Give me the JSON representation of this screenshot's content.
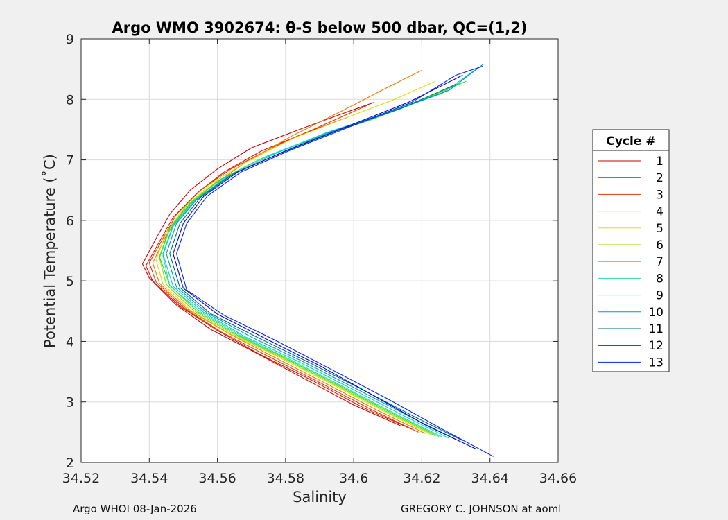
{
  "chart_data": {
    "type": "line",
    "title": "Argo WMO 3902674: θ-S below 500 dbar,  QC=(1,2)",
    "xlabel": "Salinity",
    "ylabel": "Potential Temperature (˚C)",
    "xlim": [
      34.52,
      34.66
    ],
    "ylim": [
      2,
      9
    ],
    "xticks": [
      "34.52",
      "34.54",
      "34.56",
      "34.58",
      "34.6",
      "34.62",
      "34.64",
      "34.66"
    ],
    "yticks": [
      "2",
      "3",
      "4",
      "5",
      "6",
      "7",
      "8",
      "9"
    ],
    "grid": true,
    "legend": {
      "title": "Cycle #",
      "placement": "right"
    },
    "series": [
      {
        "name": "1",
        "color": "#cc0000",
        "x": [
          34.614,
          34.6,
          34.585,
          34.57,
          34.558,
          34.548,
          34.54,
          34.538,
          34.542,
          34.546,
          34.552,
          34.56,
          34.57,
          34.584,
          34.596,
          34.606
        ],
        "y": [
          2.6,
          2.95,
          3.4,
          3.85,
          4.2,
          4.6,
          5.05,
          5.28,
          5.7,
          6.1,
          6.5,
          6.85,
          7.2,
          7.5,
          7.75,
          7.95
        ]
      },
      {
        "name": "2",
        "color": "#dd1100",
        "x": [
          34.617,
          34.603,
          34.588,
          34.572,
          34.56,
          34.549,
          34.541,
          34.539,
          34.543,
          34.547,
          34.554,
          34.562,
          34.573,
          34.586,
          34.598
        ],
        "y": [
          2.55,
          2.9,
          3.35,
          3.8,
          4.18,
          4.58,
          5.0,
          5.25,
          5.65,
          6.05,
          6.45,
          6.8,
          7.15,
          7.45,
          7.7
        ]
      },
      {
        "name": "3",
        "color": "#e63300",
        "x": [
          34.619,
          34.605,
          34.59,
          34.574,
          34.561,
          34.55,
          34.542,
          34.54,
          34.544,
          34.548,
          34.555,
          34.564,
          34.576,
          34.59,
          34.604
        ],
        "y": [
          2.5,
          2.88,
          3.32,
          3.78,
          4.16,
          4.56,
          4.98,
          5.3,
          5.7,
          6.1,
          6.5,
          6.85,
          7.2,
          7.55,
          7.9
        ]
      },
      {
        "name": "4",
        "color": "#ee7700",
        "x": [
          34.621,
          34.607,
          34.592,
          34.576,
          34.563,
          34.551,
          34.543,
          34.541,
          34.545,
          34.55,
          34.558,
          34.568,
          34.582,
          34.598,
          34.61,
          34.62
        ],
        "y": [
          2.48,
          2.86,
          3.3,
          3.76,
          4.14,
          4.54,
          4.96,
          5.3,
          5.75,
          6.15,
          6.55,
          6.95,
          7.4,
          7.85,
          8.2,
          8.48
        ]
      },
      {
        "name": "5",
        "color": "#dddd00",
        "x": [
          34.623,
          34.609,
          34.594,
          34.578,
          34.564,
          34.552,
          34.544,
          34.542,
          34.545,
          34.55,
          34.558,
          34.568,
          34.582,
          34.598,
          34.612,
          34.624
        ],
        "y": [
          2.45,
          2.84,
          3.28,
          3.74,
          4.12,
          4.52,
          4.95,
          5.35,
          5.8,
          6.2,
          6.6,
          6.95,
          7.35,
          7.7,
          8.0,
          8.3
        ]
      },
      {
        "name": "6",
        "color": "#88dd00",
        "x": [
          34.624,
          34.61,
          34.595,
          34.579,
          34.565,
          34.553,
          34.545,
          34.543,
          34.546,
          34.551,
          34.56,
          34.572,
          34.588,
          34.604,
          34.618,
          34.632
        ],
        "y": [
          2.44,
          2.83,
          3.27,
          3.73,
          4.11,
          4.51,
          4.94,
          5.38,
          5.85,
          6.25,
          6.65,
          7.0,
          7.35,
          7.65,
          7.95,
          8.28
        ]
      },
      {
        "name": "7",
        "color": "#33dd33",
        "x": [
          34.625,
          34.611,
          34.596,
          34.58,
          34.566,
          34.554,
          34.546,
          34.543,
          34.546,
          34.552,
          34.561,
          34.573,
          34.589,
          34.605,
          34.619,
          34.633
        ],
        "y": [
          2.43,
          2.82,
          3.26,
          3.72,
          4.1,
          4.5,
          4.93,
          5.4,
          5.88,
          6.28,
          6.68,
          7.02,
          7.37,
          7.66,
          7.96,
          8.3
        ]
      },
      {
        "name": "8",
        "color": "#22ddaa",
        "x": [
          34.626,
          34.612,
          34.597,
          34.581,
          34.567,
          34.555,
          34.546,
          34.544,
          34.547,
          34.553,
          34.562,
          34.574,
          34.59,
          34.606,
          34.62
        ],
        "y": [
          2.42,
          2.81,
          3.25,
          3.71,
          4.09,
          4.49,
          4.92,
          5.42,
          5.9,
          6.3,
          6.7,
          7.05,
          7.4,
          7.7,
          8.0
        ]
      },
      {
        "name": "9",
        "color": "#00cccc",
        "x": [
          34.628,
          34.614,
          34.599,
          34.583,
          34.568,
          34.556,
          34.547,
          34.544,
          34.547,
          34.553,
          34.563,
          34.576,
          34.592,
          34.61,
          34.626,
          34.636
        ],
        "y": [
          2.4,
          2.79,
          3.23,
          3.69,
          4.08,
          4.48,
          4.91,
          5.45,
          5.92,
          6.32,
          6.72,
          7.08,
          7.45,
          7.78,
          8.1,
          8.5
        ]
      },
      {
        "name": "10",
        "color": "#0099bb",
        "x": [
          34.63,
          34.616,
          34.601,
          34.585,
          34.57,
          34.557,
          34.548,
          34.545,
          34.548,
          34.554,
          34.564,
          34.578,
          34.594,
          34.612,
          34.628,
          34.638
        ],
        "y": [
          2.38,
          2.77,
          3.21,
          3.67,
          4.07,
          4.47,
          4.9,
          5.45,
          5.95,
          6.35,
          6.75,
          7.1,
          7.48,
          7.82,
          8.15,
          8.58
        ]
      },
      {
        "name": "11",
        "color": "#006688",
        "x": [
          34.632,
          34.618,
          34.603,
          34.587,
          34.572,
          34.558,
          34.549,
          34.546,
          34.549,
          34.555,
          34.565,
          34.579,
          34.596,
          34.614,
          34.63
        ],
        "y": [
          2.36,
          2.75,
          3.19,
          3.65,
          4.06,
          4.46,
          4.89,
          5.45,
          5.95,
          6.38,
          6.78,
          7.12,
          7.5,
          7.85,
          8.25
        ]
      },
      {
        "name": "12",
        "color": "#0000cc",
        "x": [
          34.636,
          34.621,
          34.606,
          34.59,
          34.574,
          34.56,
          34.55,
          34.547,
          34.55,
          34.556,
          34.566,
          34.58,
          34.598,
          34.616,
          34.632
        ],
        "y": [
          2.22,
          2.62,
          3.1,
          3.6,
          4.05,
          4.45,
          4.88,
          5.45,
          5.95,
          6.4,
          6.8,
          7.15,
          7.55,
          7.95,
          8.4
        ]
      },
      {
        "name": "13",
        "color": "#0022ff",
        "x": [
          34.641,
          34.626,
          34.61,
          34.593,
          34.577,
          34.562,
          34.551,
          34.548,
          34.551,
          34.557,
          34.567,
          34.581,
          34.599,
          34.617,
          34.63,
          34.638
        ],
        "y": [
          2.1,
          2.55,
          3.05,
          3.55,
          4.02,
          4.43,
          4.85,
          5.45,
          5.95,
          6.4,
          6.8,
          7.15,
          7.55,
          7.95,
          8.4,
          8.55
        ]
      }
    ]
  },
  "footer": {
    "left": "Argo WHOI 08-Jan-2026",
    "right": "GREGORY C. JOHNSON at aoml"
  }
}
